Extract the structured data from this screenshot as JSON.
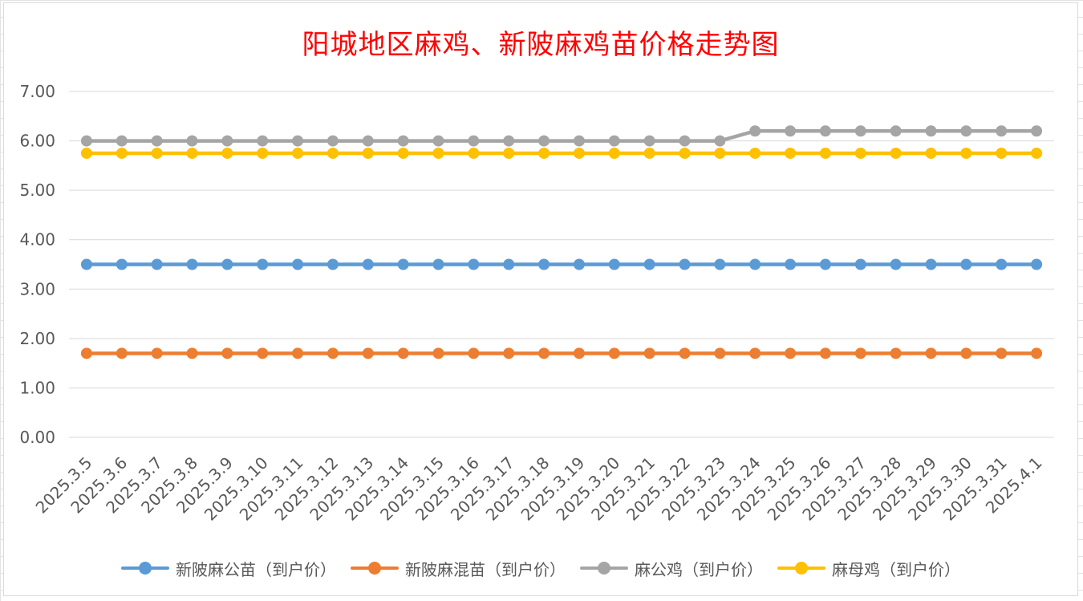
{
  "chart_data": {
    "type": "line",
    "title": "阳城地区麻鸡、新陂麻鸡苗价格走势图",
    "xlabel": "",
    "ylabel": "",
    "ylim": [
      0,
      7
    ],
    "yticks": [
      "0.00",
      "1.00",
      "2.00",
      "3.00",
      "4.00",
      "5.00",
      "6.00",
      "7.00"
    ],
    "grid": true,
    "legend_position": "bottom",
    "categories": [
      "2025.3.5",
      "2025.3.6",
      "2025.3.7",
      "2025.3.8",
      "2025.3.9",
      "2025.3.10",
      "2025.3.11",
      "2025.3.12",
      "2025.3.13",
      "2025.3.14",
      "2025.3.15",
      "2025.3.16",
      "2025.3.17",
      "2025.3.18",
      "2025.3.19",
      "2025.3.20",
      "2025.3.21",
      "2025.3.22",
      "2025.3.23",
      "2025.3.24",
      "2025.3.25",
      "2025.3.26",
      "2025.3.27",
      "2025.3.28",
      "2025.3.29",
      "2025.3.30",
      "2025.3.31",
      "2025.4.1"
    ],
    "series": [
      {
        "name": "新陂麻公苗（到户价）",
        "color": "#5b9bd5",
        "values": [
          3.5,
          3.5,
          3.5,
          3.5,
          3.5,
          3.5,
          3.5,
          3.5,
          3.5,
          3.5,
          3.5,
          3.5,
          3.5,
          3.5,
          3.5,
          3.5,
          3.5,
          3.5,
          3.5,
          3.5,
          3.5,
          3.5,
          3.5,
          3.5,
          3.5,
          3.5,
          3.5,
          3.5
        ]
      },
      {
        "name": "新陂麻混苗（到户价）",
        "color": "#ed7d31",
        "values": [
          1.7,
          1.7,
          1.7,
          1.7,
          1.7,
          1.7,
          1.7,
          1.7,
          1.7,
          1.7,
          1.7,
          1.7,
          1.7,
          1.7,
          1.7,
          1.7,
          1.7,
          1.7,
          1.7,
          1.7,
          1.7,
          1.7,
          1.7,
          1.7,
          1.7,
          1.7,
          1.7,
          1.7
        ]
      },
      {
        "name": "麻公鸡（到户价）",
        "color": "#a5a5a5",
        "values": [
          6.0,
          6.0,
          6.0,
          6.0,
          6.0,
          6.0,
          6.0,
          6.0,
          6.0,
          6.0,
          6.0,
          6.0,
          6.0,
          6.0,
          6.0,
          6.0,
          6.0,
          6.0,
          6.0,
          6.2,
          6.2,
          6.2,
          6.2,
          6.2,
          6.2,
          6.2,
          6.2,
          6.2
        ]
      },
      {
        "name": "麻母鸡（到户价）",
        "color": "#ffc000",
        "values": [
          5.75,
          5.75,
          5.75,
          5.75,
          5.75,
          5.75,
          5.75,
          5.75,
          5.75,
          5.75,
          5.75,
          5.75,
          5.75,
          5.75,
          5.75,
          5.75,
          5.75,
          5.75,
          5.75,
          5.75,
          5.75,
          5.75,
          5.75,
          5.75,
          5.75,
          5.75,
          5.75,
          5.75
        ]
      }
    ]
  }
}
